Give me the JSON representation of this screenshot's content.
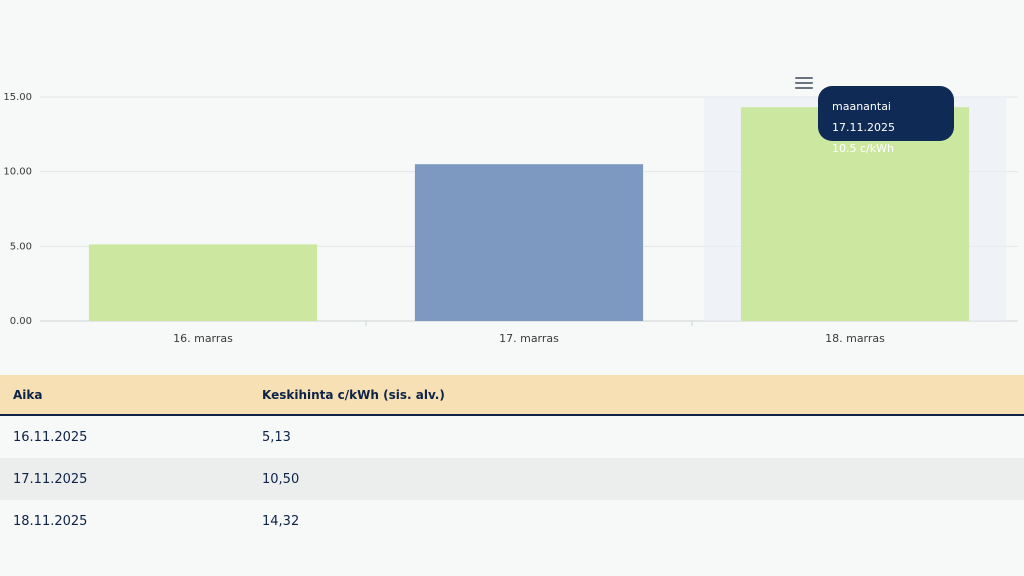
{
  "chart_data": {
    "type": "bar",
    "categories": [
      "16. marras",
      "17. marras",
      "18. marras"
    ],
    "values": [
      5.13,
      10.5,
      14.32
    ],
    "colors": [
      "#cce8a0",
      "#7e99c1",
      "#cce8a0"
    ],
    "ylim": [
      0,
      15
    ],
    "yticks": [
      "0.00",
      "5.00",
      "10.00",
      "15.00"
    ],
    "ytick_values": [
      0,
      5,
      10,
      15
    ],
    "grid": true,
    "tooltip": {
      "line1": "maanantai 17.11.2025",
      "line2": "10.5 c/kWh"
    }
  },
  "table": {
    "headers": [
      "Aika",
      "Keskihinta c/kWh (sis. alv.)"
    ],
    "rows": [
      [
        "16.11.2025",
        "5,13"
      ],
      [
        "17.11.2025",
        "10,50"
      ],
      [
        "18.11.2025",
        "14,32"
      ]
    ]
  }
}
